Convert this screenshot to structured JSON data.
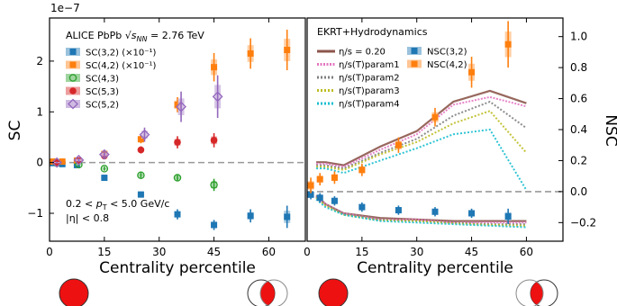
{
  "chart_data": [
    {
      "panel": "left",
      "type": "scatter",
      "ylabel": "SC",
      "xlabel": "Centrality percentile",
      "exponent_label": "1e−7",
      "xlim": [
        0,
        70
      ],
      "ylim": [
        -1.55,
        2.85
      ],
      "xticks": [
        0,
        15,
        30,
        45,
        60
      ],
      "xticklabels": [
        "0",
        "15",
        "30",
        "45",
        "60"
      ],
      "yticks": [
        -1,
        0,
        1,
        2
      ],
      "yticklabels": [
        "−1",
        "0",
        "1",
        "2"
      ],
      "header_text": "ALICE PbPb √s_NN = 2.76 TeV",
      "header_parts": {
        "pre": "ALICE PbPb ",
        "sqrt": "√",
        "s": "s",
        "sub": "NN",
        "post": " = 2.76 TeV"
      },
      "cuts_text": [
        "0.2 < p_T < 5.0 GeV/c",
        "|η| < 0.8"
      ],
      "cuts_parts": {
        "line1_pre": "0.2 < ",
        "p": "p",
        "sub": "T",
        "line1_post": " < 5.0 GeV/c",
        "line2": "|η| < 0.8"
      },
      "legend_position": "upper-left",
      "series": [
        {
          "name": "SC(3,2) (×10⁻¹)",
          "color": "#1f77b4",
          "marker": "square",
          "points": [
            [
              1,
              -0.01,
              0.03
            ],
            [
              3.5,
              -0.03,
              0.03
            ],
            [
              7.5,
              -0.05,
              0.04
            ],
            [
              15,
              -0.3,
              0.04
            ],
            [
              25,
              -0.63,
              0.06
            ],
            [
              35,
              -1.02,
              0.1
            ],
            [
              45,
              -1.23,
              0.1
            ],
            [
              55,
              -1.05,
              0.13
            ],
            [
              65,
              -1.07,
              0.22
            ]
          ]
        },
        {
          "name": "SC(4,2) (×10⁻¹)",
          "color": "#ff7f0e",
          "marker": "square",
          "points": [
            [
              1,
              0.02,
              0.03
            ],
            [
              3.5,
              0.02,
              0.03
            ],
            [
              7.5,
              0.04,
              0.04
            ],
            [
              15,
              0.17,
              0.06
            ],
            [
              25,
              0.46,
              0.08
            ],
            [
              35,
              1.14,
              0.15
            ],
            [
              45,
              1.88,
              0.28
            ],
            [
              55,
              2.15,
              0.3
            ],
            [
              65,
              2.22,
              0.4
            ]
          ]
        },
        {
          "name": "SC(4,3)",
          "color": "#2ca02c",
          "marker": "open-circle",
          "points": [
            [
              2,
              -0.01,
              0.02
            ],
            [
              8,
              -0.04,
              0.03
            ],
            [
              15,
              -0.12,
              0.04
            ],
            [
              25,
              -0.25,
              0.06
            ],
            [
              35,
              -0.3,
              0.07
            ],
            [
              45,
              -0.44,
              0.12
            ]
          ]
        },
        {
          "name": "SC(5,3)",
          "color": "#d62728",
          "marker": "circle",
          "points": [
            [
              2,
              0.0,
              0.02
            ],
            [
              8,
              0.04,
              0.03
            ],
            [
              15,
              0.13,
              0.05
            ],
            [
              25,
              0.25,
              0.07
            ],
            [
              35,
              0.4,
              0.12
            ],
            [
              45,
              0.44,
              0.14
            ]
          ]
        },
        {
          "name": "SC(5,2)",
          "color": "#9467bd",
          "marker": "open-diamond",
          "points": [
            [
              2,
              0.0,
              0.02
            ],
            [
              8,
              0.05,
              0.04
            ],
            [
              15,
              0.16,
              0.06
            ],
            [
              26,
              0.55,
              0.14
            ],
            [
              36,
              1.1,
              0.3
            ],
            [
              46,
              1.3,
              0.42
            ]
          ]
        }
      ]
    },
    {
      "panel": "right",
      "type": "line",
      "ylabel": "NSC",
      "xlabel": "Centrality percentile",
      "xlim": [
        0,
        70
      ],
      "ylim": [
        -0.32,
        1.12
      ],
      "xticks": [
        0,
        15,
        30,
        45,
        60
      ],
      "xticklabels": [
        "0",
        "15",
        "30",
        "45",
        "60"
      ],
      "yticks": [
        -0.2,
        0.0,
        0.2,
        0.4,
        0.6,
        0.8,
        1.0
      ],
      "yticklabels": [
        "−0.2",
        "0.0",
        "0.2",
        "0.4",
        "0.6",
        "0.8",
        "1.0"
      ],
      "header_text": "EKRT+Hydrodynamics",
      "legend_position": "upper-left",
      "theory_x": [
        2.5,
        5,
        10,
        20,
        30,
        40,
        50,
        60
      ],
      "theory": [
        {
          "name": "η/s = 0.20",
          "color": "#8c564b",
          "nsc42": [
            0.19,
            0.19,
            0.17,
            0.29,
            0.39,
            0.58,
            0.65,
            0.57
          ],
          "nsc32": [
            -0.025,
            -0.08,
            -0.14,
            -0.17,
            -0.18,
            -0.19,
            -0.19,
            -0.19
          ]
        },
        {
          "name": "η/s(T)param1",
          "color": "#e377c2",
          "nsc42": [
            0.18,
            0.18,
            0.16,
            0.27,
            0.37,
            0.56,
            0.61,
            0.55
          ],
          "nsc32": [
            -0.03,
            -0.08,
            -0.14,
            -0.18,
            -0.18,
            -0.2,
            -0.2,
            -0.2
          ]
        },
        {
          "name": "η/s(T)param2",
          "color": "#7f7f7f",
          "nsc42": [
            0.17,
            0.17,
            0.15,
            0.25,
            0.34,
            0.49,
            0.58,
            0.41
          ],
          "nsc32": [
            -0.035,
            -0.085,
            -0.145,
            -0.18,
            -0.19,
            -0.2,
            -0.21,
            -0.21
          ]
        },
        {
          "name": "η/s(T)param3",
          "color": "#bcbd22",
          "nsc42": [
            0.16,
            0.16,
            0.14,
            0.24,
            0.32,
            0.44,
            0.52,
            0.25
          ],
          "nsc32": [
            -0.04,
            -0.09,
            -0.15,
            -0.185,
            -0.19,
            -0.205,
            -0.215,
            -0.22
          ]
        },
        {
          "name": "η/s(T)param4",
          "color": "#17becf",
          "nsc42": [
            0.15,
            0.15,
            0.12,
            0.2,
            0.28,
            0.37,
            0.4,
            0.01
          ],
          "nsc32": [
            -0.05,
            -0.1,
            -0.15,
            -0.19,
            -0.2,
            -0.21,
            -0.22,
            -0.23
          ]
        }
      ],
      "series": [
        {
          "name": "NSC(3,2)",
          "color": "#1f77b4",
          "marker": "square",
          "points": [
            [
              1,
              -0.02,
              0.03
            ],
            [
              3.5,
              -0.04,
              0.03
            ],
            [
              7.5,
              -0.06,
              0.03
            ],
            [
              15,
              -0.1,
              0.03
            ],
            [
              25,
              -0.12,
              0.03
            ],
            [
              35,
              -0.13,
              0.03
            ],
            [
              45,
              -0.14,
              0.03
            ],
            [
              55,
              -0.16,
              0.05
            ]
          ]
        },
        {
          "name": "NSC(4,2)",
          "color": "#ff7f0e",
          "marker": "square",
          "points": [
            [
              1,
              0.04,
              0.05
            ],
            [
              3.5,
              0.08,
              0.04
            ],
            [
              7.5,
              0.09,
              0.04
            ],
            [
              15,
              0.14,
              0.04
            ],
            [
              25,
              0.3,
              0.05
            ],
            [
              35,
              0.48,
              0.06
            ],
            [
              45,
              0.77,
              0.1
            ],
            [
              55,
              0.95,
              0.15
            ]
          ]
        }
      ]
    }
  ]
}
